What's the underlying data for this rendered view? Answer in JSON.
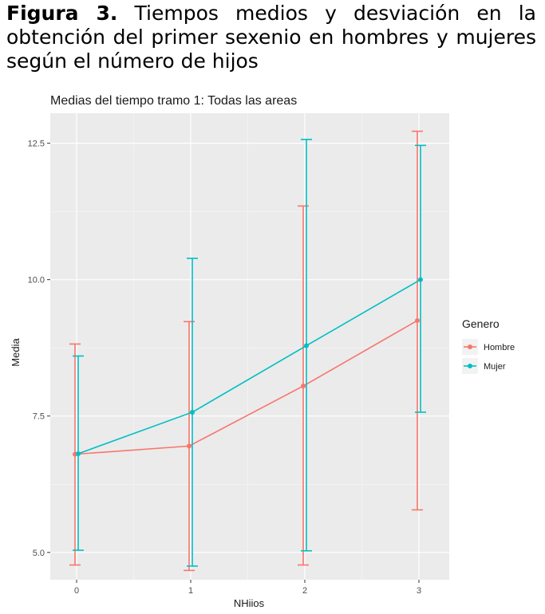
{
  "figure": {
    "label": "Figura 3.",
    "caption": "Tiempos medios y desviación en la obtención del primer sexenio en hombres y mujeres según el número de hijos"
  },
  "chart_data": {
    "type": "line",
    "title": "Medias del tiempo tramo 1: Todas las areas",
    "xlabel": "NHiios",
    "ylabel": "Media",
    "categories": [
      "0",
      "1",
      "2",
      "3"
    ],
    "y_ticks": [
      "5.0",
      "7.5",
      "10.0",
      "12.5"
    ],
    "ylim": [
      4.5,
      13.05
    ],
    "grid": true,
    "legend": {
      "title": "Genero",
      "position": "right"
    },
    "series": [
      {
        "name": "Hombre",
        "color": "#f8766d",
        "values": [
          6.8,
          6.95,
          8.05,
          9.25
        ],
        "lower": [
          4.77,
          4.67,
          4.77,
          5.78
        ],
        "upper": [
          8.82,
          9.23,
          11.35,
          12.72
        ]
      },
      {
        "name": "Mujer",
        "color": "#00bfc4",
        "values": [
          6.81,
          7.57,
          8.79,
          10.0
        ],
        "lower": [
          5.04,
          4.75,
          5.03,
          7.57
        ],
        "upper": [
          8.6,
          10.39,
          12.57,
          12.46
        ]
      }
    ]
  }
}
